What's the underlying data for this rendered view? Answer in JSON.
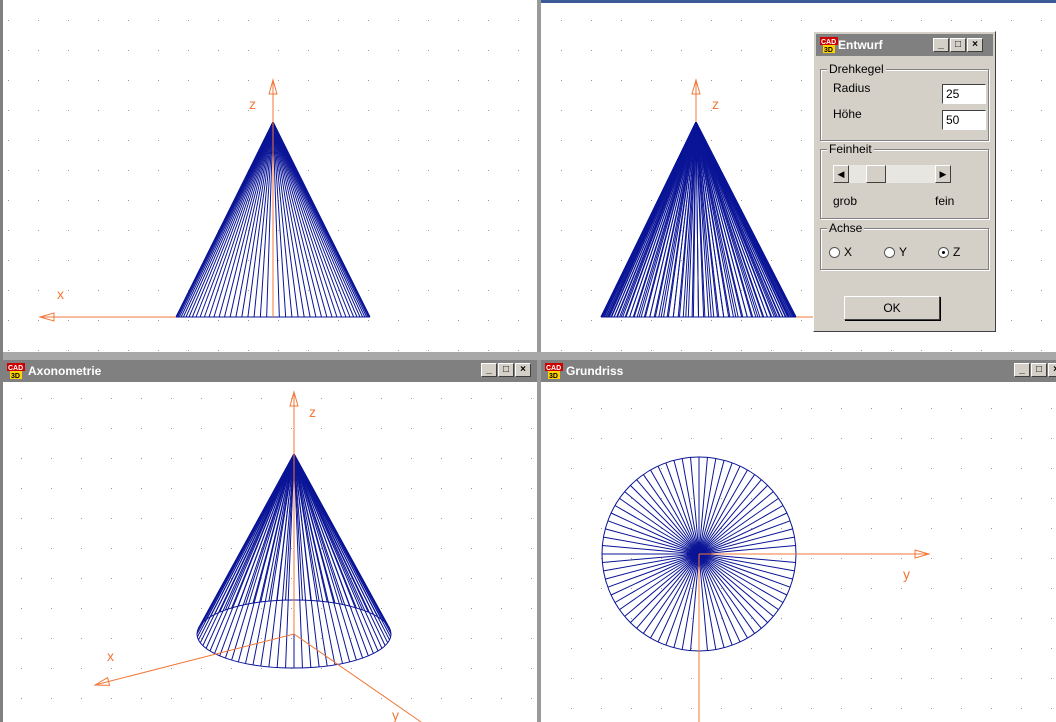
{
  "windows": {
    "front_view": {
      "title": ""
    },
    "side_view": {
      "title": ""
    },
    "axonometrie": {
      "title": "Axonometrie"
    },
    "grundriss": {
      "title": "Grundriss"
    }
  },
  "axis_labels": {
    "x": "x",
    "y": "y",
    "z": "z"
  },
  "dialog": {
    "title": "Entwurf",
    "drehkegel": {
      "group_label": "Drehkegel",
      "radius_label": "Radius",
      "radius_value": "25",
      "hoehe_label": "Höhe",
      "hoehe_value": "50"
    },
    "feinheit": {
      "group_label": "Feinheit",
      "min_label": "grob",
      "max_label": "fein",
      "level": 0.25
    },
    "achse": {
      "group_label": "Achse",
      "options": [
        "X",
        "Y",
        "Z"
      ],
      "selected": "Z"
    },
    "ok_label": "OK"
  },
  "window_button_glyphs": {
    "minimize": "_",
    "maximize": "□",
    "close": "×"
  },
  "colors": {
    "axis": "#f07838",
    "mesh": "#0a1496",
    "titlebar": "#808080",
    "dialog_bg": "#d4d0c8"
  }
}
